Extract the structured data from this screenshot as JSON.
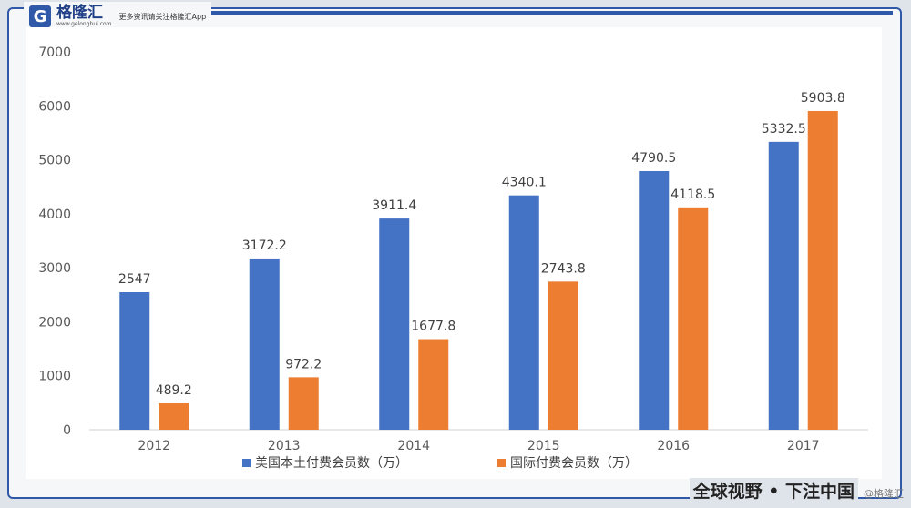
{
  "header": {
    "logo_mark": "G",
    "logo_name": "格隆汇",
    "logo_sub": "www.gelonghui.com",
    "tagline": "更多资讯请关注格隆汇App"
  },
  "footer": {
    "slogan": "全球视野 • 下注中国",
    "watermark": "@格隆汇"
  },
  "chart_data": {
    "type": "bar",
    "categories": [
      "2012",
      "2013",
      "2014",
      "2015",
      "2016",
      "2017"
    ],
    "series": [
      {
        "name": "美国本土付费会员数（万）",
        "color": "#4472c4",
        "values": [
          2547,
          3172.2,
          3911.4,
          4340.1,
          4790.5,
          5332.5
        ],
        "labels": [
          "2547",
          "3172.2",
          "3911.4",
          "4340.1",
          "4790.5",
          "5332.5"
        ]
      },
      {
        "name": "国际付费会员数（万）",
        "color": "#ed7d31",
        "values": [
          489.2,
          972.2,
          1677.8,
          2743.8,
          4118.5,
          5903.8
        ],
        "labels": [
          "489.2",
          "972.2",
          "1677.8",
          "2743.8",
          "4118.5",
          "5903.8"
        ]
      }
    ],
    "ylim": [
      0,
      7000
    ],
    "yticks": [
      "0",
      "1000",
      "2000",
      "3000",
      "4000",
      "5000",
      "6000",
      "7000"
    ],
    "legend_position": "bottom",
    "grid": false
  }
}
